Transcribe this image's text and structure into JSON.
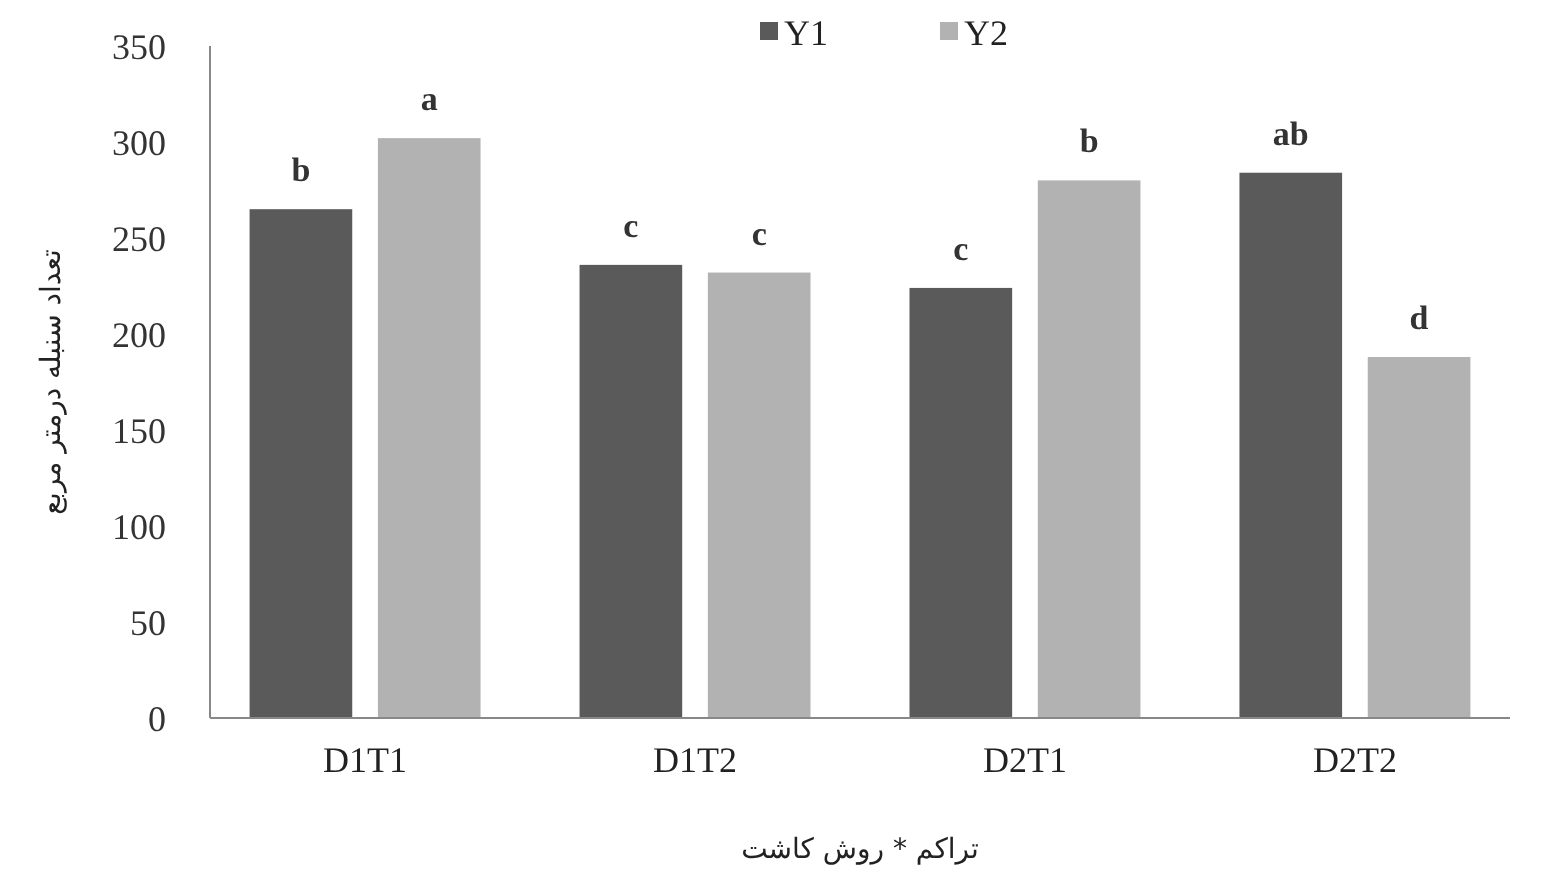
{
  "chart_data": {
    "type": "bar",
    "xlabel": "تراکم * روش کاشت",
    "ylabel": "تعداد سنبله درمتر مربع",
    "categories": [
      "D1T1",
      "D1T2",
      "D2T1",
      "D2T2"
    ],
    "series": [
      {
        "name": "Y1",
        "color": "#5a5a5a",
        "values": [
          265,
          236,
          224,
          284
        ],
        "value_labels": [
          "b",
          "c",
          "c",
          "ab"
        ]
      },
      {
        "name": "Y2",
        "color": "#b2b2b2",
        "values": [
          302,
          232,
          280,
          188
        ],
        "value_labels": [
          "a",
          "c",
          "b",
          "d"
        ]
      }
    ],
    "ylim": [
      0,
      350
    ],
    "yticks": [
      0,
      50,
      100,
      150,
      200,
      250,
      300,
      350
    ],
    "grid": false,
    "legend": "top"
  }
}
